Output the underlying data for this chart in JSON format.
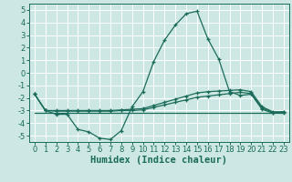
{
  "title": "",
  "xlabel": "Humidex (Indice chaleur)",
  "bg_color": "#cde8e4",
  "line_color": "#1a6b5a",
  "grid_color": "#ffffff",
  "xlim": [
    -0.5,
    23.5
  ],
  "ylim": [
    -5.5,
    5.5
  ],
  "xticks": [
    0,
    1,
    2,
    3,
    4,
    5,
    6,
    7,
    8,
    9,
    10,
    11,
    12,
    13,
    14,
    15,
    16,
    17,
    18,
    19,
    20,
    21,
    22,
    23
  ],
  "yticks": [
    -5,
    -4,
    -3,
    -2,
    -1,
    0,
    1,
    2,
    3,
    4,
    5
  ],
  "line1_x": [
    0,
    1,
    2,
    3,
    4,
    5,
    6,
    7,
    8,
    9,
    10,
    11,
    12,
    13,
    14,
    15,
    16,
    17,
    18,
    19,
    20,
    21,
    22,
    23
  ],
  "line1_y": [
    -1.7,
    -3.0,
    -3.3,
    -3.3,
    -4.5,
    -4.7,
    -5.2,
    -5.3,
    -4.6,
    -2.7,
    -1.5,
    0.9,
    2.6,
    3.8,
    4.7,
    4.9,
    2.7,
    1.1,
    -1.5,
    -1.8,
    -1.7,
    -2.9,
    -3.2,
    -3.1
  ],
  "line2_x": [
    0,
    1,
    2,
    3,
    4,
    5,
    6,
    7,
    8,
    9,
    10,
    11,
    12,
    13,
    14,
    15,
    16,
    17,
    18,
    19,
    20,
    21,
    22,
    23
  ],
  "line2_y": [
    -1.7,
    -3.0,
    -3.0,
    -3.0,
    -3.0,
    -3.0,
    -3.0,
    -3.0,
    -2.95,
    -2.9,
    -2.85,
    -2.6,
    -2.35,
    -2.1,
    -1.85,
    -1.6,
    -1.5,
    -1.45,
    -1.4,
    -1.35,
    -1.5,
    -2.7,
    -3.1,
    -3.1
  ],
  "line3_x": [
    0,
    1,
    2,
    3,
    4,
    5,
    6,
    7,
    8,
    9,
    10,
    11,
    12,
    13,
    14,
    15,
    16,
    17,
    18,
    19,
    20,
    21,
    22,
    23
  ],
  "line3_y": [
    -1.7,
    -3.0,
    -3.05,
    -3.05,
    -3.05,
    -3.05,
    -3.05,
    -3.05,
    -3.0,
    -3.0,
    -2.95,
    -2.75,
    -2.55,
    -2.35,
    -2.15,
    -1.95,
    -1.85,
    -1.75,
    -1.65,
    -1.55,
    -1.65,
    -2.8,
    -3.15,
    -3.15
  ],
  "line4_x": [
    0,
    23
  ],
  "line4_y": [
    -3.15,
    -3.15
  ],
  "tick_fontsize": 6.0,
  "xlabel_fontsize": 7.5
}
